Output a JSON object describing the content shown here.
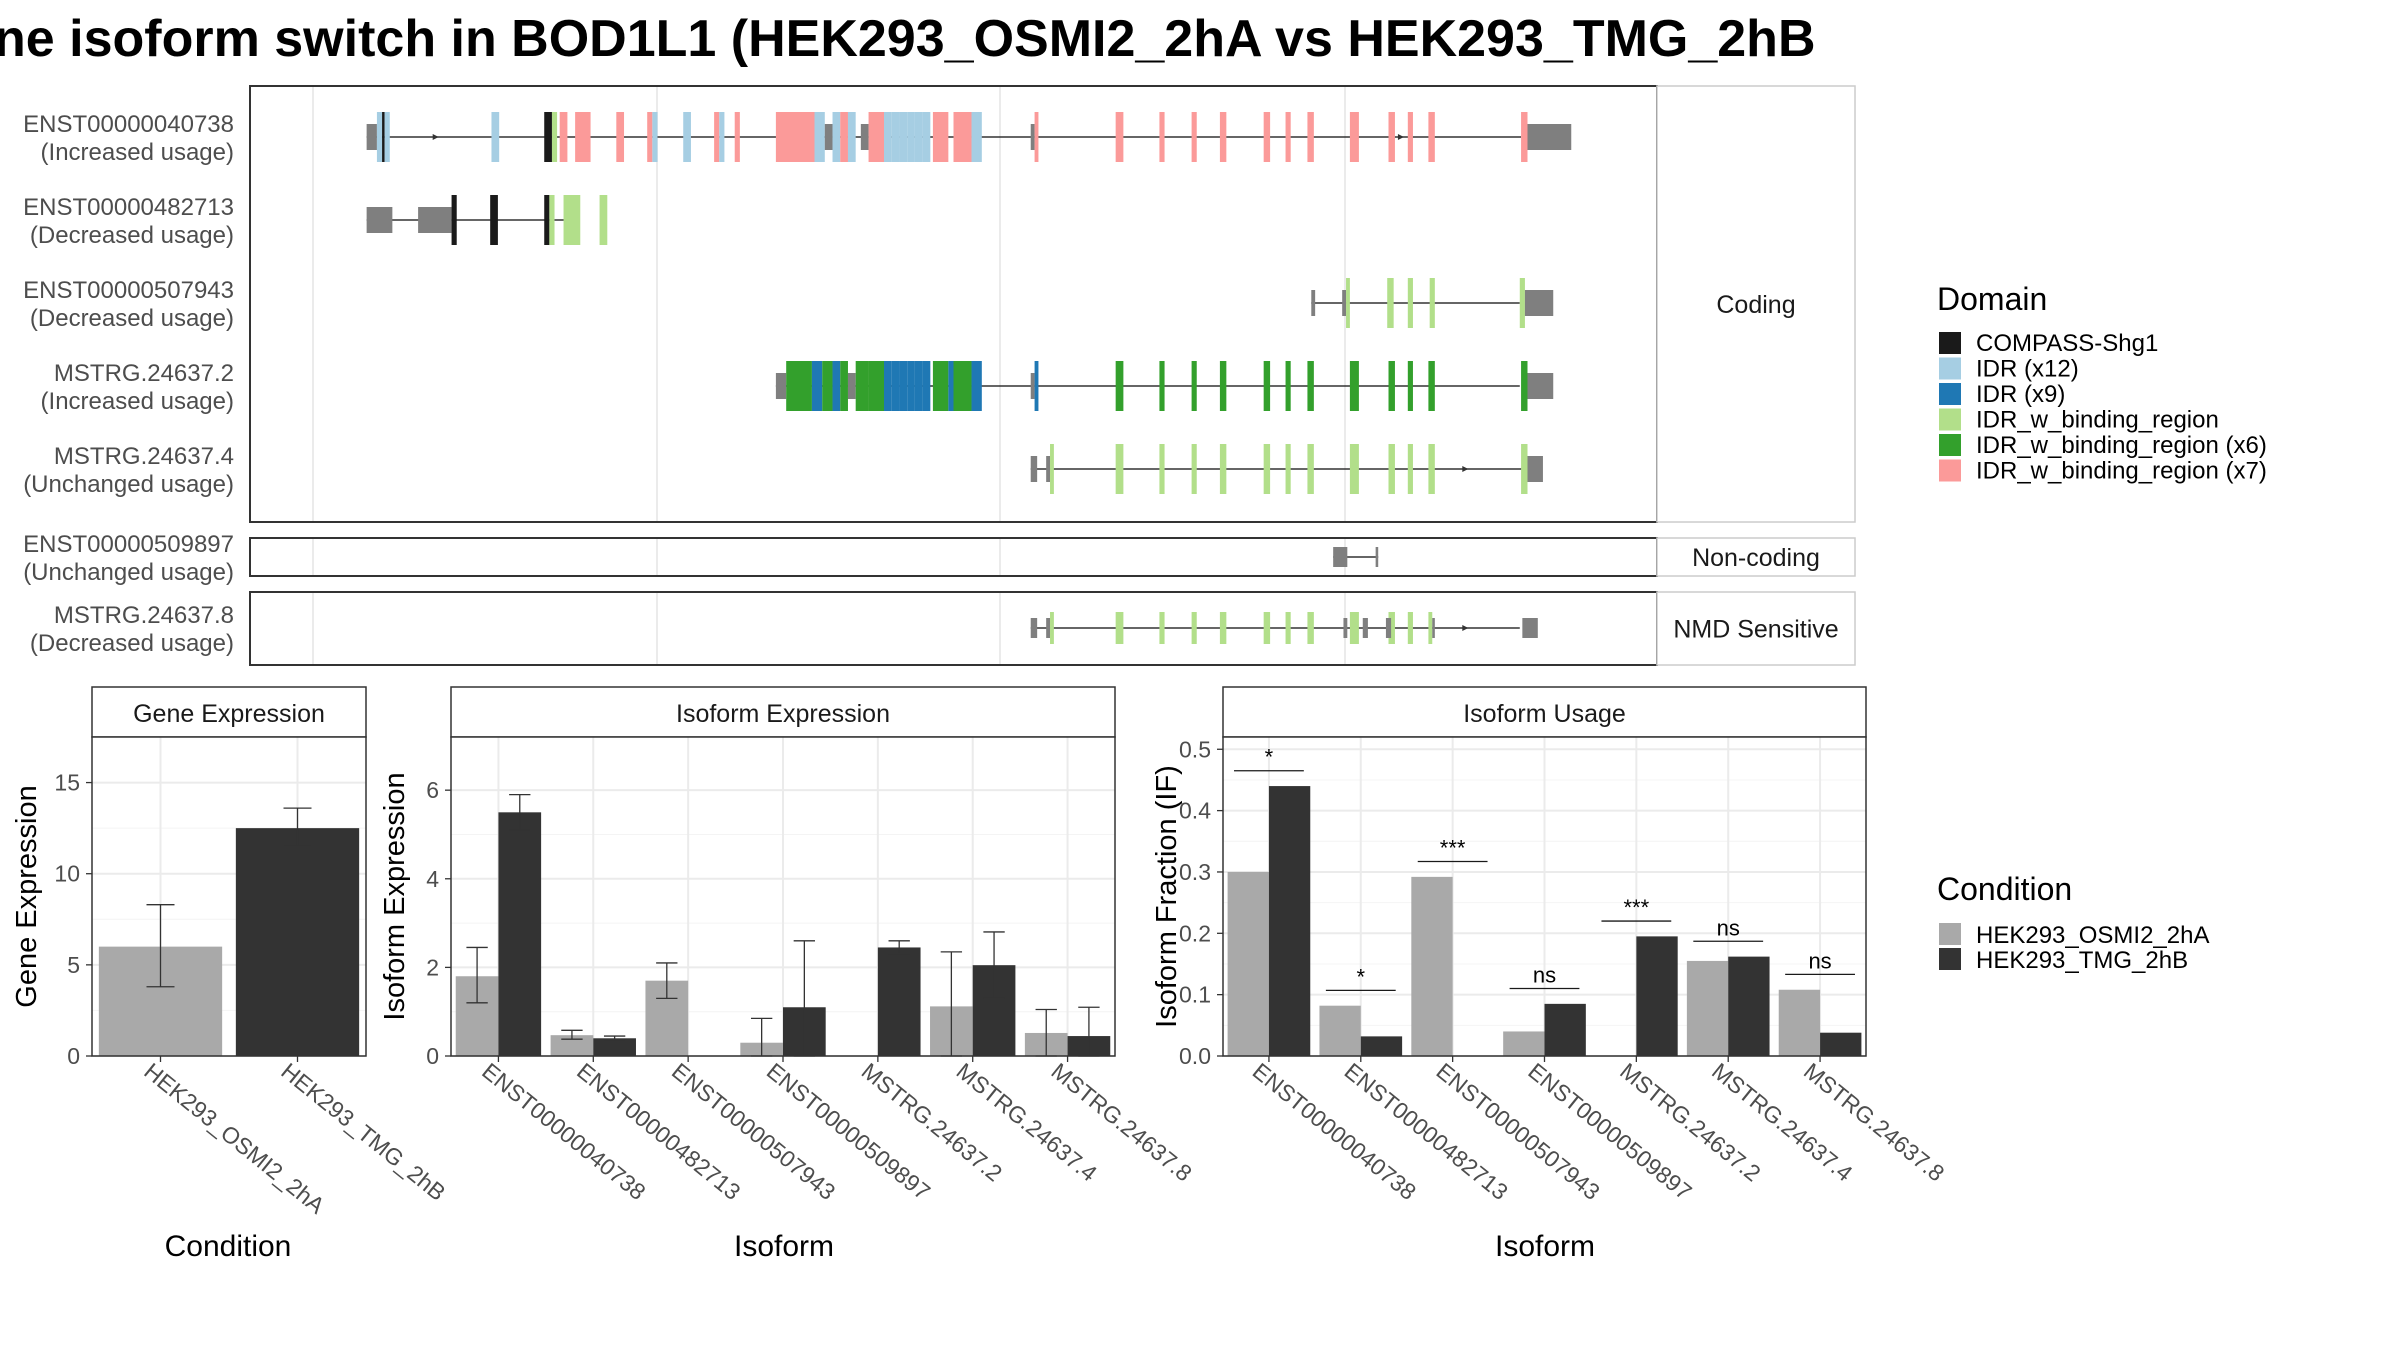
{
  "title": "ne isoform switch in BOD1L1 (HEK293_OSMI2_2hA vs HEK293_TMG_2hB",
  "colors": {
    "cond_a": "#a9a9a9",
    "cond_b": "#333333",
    "utr": "#7f7f7f",
    "none": "#7f7f7f",
    "compass": "#1a1a1a",
    "idr12": "#a6cee3",
    "idr9": "#1f78b4",
    "idrw": "#b2df8a",
    "idrw6": "#33a02c",
    "idrw7": "#fb9a99",
    "panel_border": "#333333",
    "grid": "#ebebeb"
  },
  "structure": {
    "xrange": [
      0,
      1000
    ],
    "facets": [
      {
        "label": "Coding",
        "count": 5
      },
      {
        "label": "Non-coding",
        "count": 1
      },
      {
        "label": "NMD Sensitive",
        "count": 1
      }
    ],
    "transcripts": [
      {
        "id": "ENST00000040738",
        "usage": "(Increased usage)",
        "facet": 0,
        "line": [
          44,
          941
        ],
        "arrows": [
          100,
          850
        ],
        "exons": [
          [
            44,
            52,
            "utr"
          ],
          [
            52,
            56,
            "idr12"
          ],
          [
            56,
            58,
            "compass"
          ],
          [
            58,
            62,
            "idr12"
          ],
          [
            141,
            147,
            "idr12"
          ],
          [
            182,
            188,
            "compass"
          ],
          [
            188,
            192,
            "idrw"
          ],
          [
            194,
            200,
            "idrw7"
          ],
          [
            206,
            218,
            "idrw7"
          ],
          [
            238,
            244,
            "idrw7"
          ],
          [
            262,
            266,
            "idrw7"
          ],
          [
            266,
            270,
            "idr12"
          ],
          [
            290,
            296,
            "idr12"
          ],
          [
            314,
            318,
            "idrw7"
          ],
          [
            318,
            322,
            "idr12"
          ],
          [
            330,
            334,
            "idrw7"
          ],
          [
            362,
            392,
            "idrw7"
          ],
          [
            392,
            400,
            "idr12"
          ],
          [
            400,
            406,
            "utr"
          ],
          [
            406,
            412,
            "idr12"
          ],
          [
            412,
            418,
            "idrw7"
          ],
          [
            418,
            424,
            "idr12"
          ],
          [
            428,
            434,
            "utr"
          ],
          [
            434,
            446,
            "idrw7"
          ],
          [
            446,
            452,
            "idr12"
          ],
          [
            452,
            458,
            "idr12"
          ],
          [
            458,
            464,
            "idr12"
          ],
          [
            464,
            470,
            "idr12"
          ],
          [
            470,
            476,
            "idr12"
          ],
          [
            476,
            482,
            "idr12"
          ],
          [
            484,
            496,
            "idrw7"
          ],
          [
            500,
            514,
            "idrw7"
          ],
          [
            514,
            522,
            "idr12"
          ],
          [
            560,
            563,
            "utr"
          ],
          [
            563,
            566,
            "idrw7"
          ],
          [
            626,
            632,
            "idrw7"
          ],
          [
            660,
            664,
            "idrw7"
          ],
          [
            685,
            689,
            "idrw7"
          ],
          [
            707,
            712,
            "idrw7"
          ],
          [
            741,
            746,
            "idrw7"
          ],
          [
            758,
            762,
            "idrw7"
          ],
          [
            775,
            780,
            "idrw7"
          ],
          [
            808,
            815,
            "idrw7"
          ],
          [
            838,
            843,
            "idrw7"
          ],
          [
            853,
            857,
            "idrw7"
          ],
          [
            869,
            874,
            "idrw7"
          ],
          [
            941,
            946,
            "idrw7"
          ],
          [
            946,
            980,
            "utr"
          ]
        ]
      },
      {
        "id": "ENST00000482713",
        "usage": "(Decreased usage)",
        "facet": 0,
        "line": [
          44,
          198
        ],
        "arrows": [],
        "exons": [
          [
            44,
            64,
            "utr"
          ],
          [
            84,
            110,
            "utr"
          ],
          [
            110,
            114,
            "compass"
          ],
          [
            140,
            146,
            "compass"
          ],
          [
            182,
            186,
            "compass"
          ],
          [
            186,
            190,
            "idrw"
          ],
          [
            197,
            210,
            "idrw"
          ],
          [
            225,
            231,
            "idrw"
          ]
        ]
      },
      {
        "id": "ENST00000507943",
        "usage": "(Decreased usage)",
        "facet": 0,
        "line": [
          778,
          940
        ],
        "arrows": [],
        "exons": [
          [
            778,
            781,
            "utr"
          ],
          [
            802,
            805,
            "utr"
          ],
          [
            805,
            808,
            "idrw"
          ],
          [
            837,
            842,
            "idrw"
          ],
          [
            853,
            857,
            "idrw"
          ],
          [
            870,
            874,
            "idrw"
          ],
          [
            940,
            944,
            "idrw"
          ],
          [
            944,
            966,
            "utr"
          ]
        ]
      },
      {
        "id": "MSTRG.24637.2",
        "usage": "(Increased usage)",
        "facet": 0,
        "line": [
          362,
          940
        ],
        "arrows": [],
        "exons": [
          [
            362,
            370,
            "utr"
          ],
          [
            370,
            390,
            "idrw6"
          ],
          [
            390,
            398,
            "idr9"
          ],
          [
            398,
            406,
            "idrw6"
          ],
          [
            406,
            412,
            "idr9"
          ],
          [
            412,
            418,
            "idrw6"
          ],
          [
            418,
            424,
            "utr"
          ],
          [
            424,
            434,
            "idrw6"
          ],
          [
            434,
            446,
            "idrw6"
          ],
          [
            446,
            452,
            "idr9"
          ],
          [
            452,
            458,
            "idr9"
          ],
          [
            458,
            464,
            "idr9"
          ],
          [
            464,
            470,
            "idr9"
          ],
          [
            470,
            476,
            "idr9"
          ],
          [
            476,
            482,
            "idr9"
          ],
          [
            484,
            496,
            "idrw6"
          ],
          [
            496,
            500,
            "idr9"
          ],
          [
            500,
            514,
            "idrw6"
          ],
          [
            514,
            522,
            "idr9"
          ],
          [
            560,
            563,
            "utr"
          ],
          [
            563,
            566,
            "idr9"
          ],
          [
            626,
            632,
            "idrw6"
          ],
          [
            660,
            664,
            "idrw6"
          ],
          [
            685,
            689,
            "idrw6"
          ],
          [
            707,
            712,
            "idrw6"
          ],
          [
            741,
            746,
            "idrw6"
          ],
          [
            758,
            762,
            "idrw6"
          ],
          [
            775,
            780,
            "idrw6"
          ],
          [
            808,
            815,
            "idrw6"
          ],
          [
            838,
            843,
            "idrw6"
          ],
          [
            853,
            857,
            "idrw6"
          ],
          [
            869,
            874,
            "idrw6"
          ],
          [
            941,
            946,
            "idrw6"
          ],
          [
            946,
            966,
            "utr"
          ]
        ]
      },
      {
        "id": "MSTRG.24637.4",
        "usage": "(Unchanged usage)",
        "facet": 0,
        "line": [
          560,
          945
        ],
        "arrows": [
          900
        ],
        "exons": [
          [
            560,
            565,
            "utr"
          ],
          [
            572,
            575,
            "utr"
          ],
          [
            575,
            578,
            "idrw"
          ],
          [
            626,
            632,
            "idrw"
          ],
          [
            660,
            664,
            "idrw"
          ],
          [
            685,
            689,
            "idrw"
          ],
          [
            707,
            712,
            "idrw"
          ],
          [
            741,
            746,
            "idrw"
          ],
          [
            758,
            762,
            "idrw"
          ],
          [
            775,
            780,
            "idrw"
          ],
          [
            808,
            815,
            "idrw"
          ],
          [
            838,
            843,
            "idrw"
          ],
          [
            853,
            857,
            "idrw"
          ],
          [
            869,
            874,
            "idrw"
          ],
          [
            941,
            946,
            "idrw"
          ],
          [
            946,
            958,
            "utr"
          ]
        ]
      },
      {
        "id": "ENST00000509897",
        "usage": "(Unchanged usage)",
        "facet": 1,
        "line": [
          795,
          830
        ],
        "arrows": [],
        "exons": [
          [
            795,
            806,
            "none"
          ],
          [
            828,
            830,
            "none"
          ]
        ]
      },
      {
        "id": "MSTRG.24637.8",
        "usage": "(Decreased usage)",
        "facet": 2,
        "line": [
          560,
          940
        ],
        "arrows": [
          900
        ],
        "exons": [
          [
            560,
            565,
            "utr"
          ],
          [
            572,
            575,
            "utr"
          ],
          [
            575,
            578,
            "idrw"
          ],
          [
            626,
            632,
            "idrw"
          ],
          [
            660,
            664,
            "idrw"
          ],
          [
            685,
            689,
            "idrw"
          ],
          [
            707,
            712,
            "idrw"
          ],
          [
            741,
            746,
            "idrw"
          ],
          [
            758,
            762,
            "idrw"
          ],
          [
            775,
            780,
            "idrw"
          ],
          [
            808,
            815,
            "idrw"
          ],
          [
            838,
            843,
            "idrw"
          ],
          [
            853,
            857,
            "idrw"
          ],
          [
            869,
            872,
            "idrw"
          ],
          [
            872,
            874,
            "utr"
          ],
          [
            803,
            806,
            "utr"
          ],
          [
            818,
            822,
            "utr"
          ],
          [
            836,
            840,
            "utr"
          ],
          [
            942,
            954,
            "utr"
          ]
        ]
      }
    ]
  },
  "legends": {
    "domain": {
      "title": "Domain",
      "items": [
        {
          "label": "COMPASS-Shg1",
          "key": "compass"
        },
        {
          "label": "IDR (x12)",
          "key": "idr12"
        },
        {
          "label": "IDR (x9)",
          "key": "idr9"
        },
        {
          "label": "IDR_w_binding_region",
          "key": "idrw"
        },
        {
          "label": "IDR_w_binding_region (x6)",
          "key": "idrw6"
        },
        {
          "label": "IDR_w_binding_region (x7)",
          "key": "idrw7"
        }
      ]
    },
    "condition": {
      "title": "Condition",
      "items": [
        {
          "label": "HEK293_OSMI2_2hA",
          "key": "cond_a"
        },
        {
          "label": "HEK293_TMG_2hB",
          "key": "cond_b"
        }
      ]
    }
  },
  "chart_data": [
    {
      "type": "bar",
      "title": "Gene Expression",
      "xlabel": "Condition",
      "ylabel": "Gene Expression",
      "ylim": [
        0,
        17.5
      ],
      "yticks": [
        0,
        5,
        10,
        15
      ],
      "categories": [
        "HEK293_OSMI2_2hA",
        "HEK293_TMG_2hB"
      ],
      "values": [
        6.0,
        12.5
      ],
      "errors": [
        [
          3.8,
          8.3
        ],
        [
          11.5,
          13.6
        ]
      ]
    },
    {
      "type": "bar",
      "title": "Isoform Expression",
      "xlabel": "Isoform",
      "ylabel": "Isoform Expression",
      "ylim": [
        0,
        7.2
      ],
      "yticks": [
        0,
        2,
        4,
        6
      ],
      "categories": [
        "ENST00000040738",
        "ENST00000482713",
        "ENST00000507943",
        "ENST00000509897",
        "MSTRG.24637.2",
        "MSTRG.24637.4",
        "MSTRG.24637.8"
      ],
      "series": [
        {
          "name": "HEK293_OSMI2_2hA",
          "values": [
            1.8,
            0.47,
            1.7,
            0.3,
            0.0,
            1.12,
            0.52
          ],
          "errors": [
            [
              1.2,
              2.45
            ],
            [
              0.38,
              0.58
            ],
            [
              1.3,
              2.1
            ],
            [
              0.0,
              0.85
            ],
            null,
            [
              0.0,
              2.35
            ],
            [
              0.0,
              1.05
            ]
          ]
        },
        {
          "name": "HEK293_TMG_2hB",
          "values": [
            5.5,
            0.4,
            0.0,
            1.1,
            2.45,
            2.05,
            0.45
          ],
          "errors": [
            [
              5.1,
              5.9
            ],
            [
              0.37,
              0.45
            ],
            null,
            [
              0.0,
              2.6
            ],
            [
              2.3,
              2.6
            ],
            [
              1.3,
              2.8
            ],
            [
              0.0,
              1.1
            ]
          ]
        }
      ]
    },
    {
      "type": "bar",
      "title": "Isoform Usage",
      "xlabel": "Isoform",
      "ylabel": "Isoform Fraction (IF)",
      "ylim": [
        0,
        0.52
      ],
      "yticks": [
        0.0,
        0.1,
        0.2,
        0.3,
        0.4,
        0.5
      ],
      "categories": [
        "ENST00000040738",
        "ENST00000482713",
        "ENST00000507943",
        "ENST00000509897",
        "MSTRG.24637.2",
        "MSTRG.24637.4",
        "MSTRG.24637.8"
      ],
      "series": [
        {
          "name": "HEK293_OSMI2_2hA",
          "values": [
            0.3,
            0.082,
            0.292,
            0.04,
            0.0,
            0.155,
            0.108
          ]
        },
        {
          "name": "HEK293_TMG_2hB",
          "values": [
            0.44,
            0.032,
            0.0,
            0.085,
            0.195,
            0.162,
            0.038
          ]
        }
      ],
      "significance": [
        "*",
        "*",
        "***",
        "ns",
        "***",
        "ns",
        "ns"
      ]
    }
  ]
}
